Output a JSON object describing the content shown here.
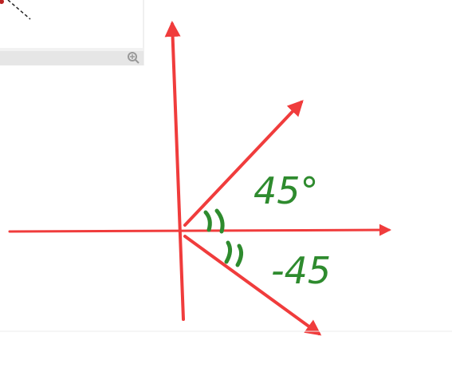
{
  "annotations": {
    "upper_angle": "45°",
    "lower_angle": "-45"
  }
}
